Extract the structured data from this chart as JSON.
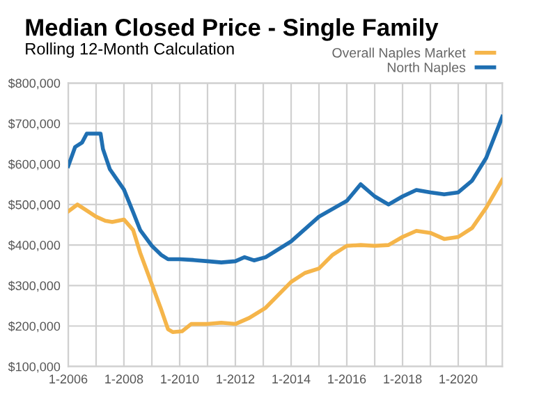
{
  "chart_data": {
    "type": "line",
    "title": "Median Closed Price - Single Family",
    "subtitle": "Rolling 12-Month Calculation",
    "series": [
      {
        "name": "Overall Naples Market",
        "color": "#f5b54a",
        "x": [
          "2006-01",
          "2006-05",
          "2006-08",
          "2007-01",
          "2007-05",
          "2007-08",
          "2008-01",
          "2008-05",
          "2008-08",
          "2009-01",
          "2009-05",
          "2009-08",
          "2009-10",
          "2010-02",
          "2010-06",
          "2011-01",
          "2011-07",
          "2012-01",
          "2012-07",
          "2013-02",
          "2014-01",
          "2014-07",
          "2015-01",
          "2015-07",
          "2016-01",
          "2016-07",
          "2017-01",
          "2017-07",
          "2018-01",
          "2018-07",
          "2019-01",
          "2019-07",
          "2020-01",
          "2020-07",
          "2021-01",
          "2021-08"
        ],
        "values": [
          483000,
          500000,
          489000,
          470000,
          460000,
          457000,
          463000,
          437000,
          381000,
          303000,
          242000,
          192000,
          185000,
          187000,
          205000,
          205000,
          208000,
          205000,
          220000,
          245000,
          309000,
          331000,
          342000,
          376000,
          398000,
          400000,
          398000,
          400000,
          420000,
          435000,
          430000,
          415000,
          420000,
          442000,
          492000,
          561000
        ]
      },
      {
        "name": "North Naples",
        "color": "#1f6fb2",
        "x": [
          "2006-01",
          "2006-04",
          "2006-07",
          "2006-09",
          "2007-03",
          "2007-04",
          "2007-07",
          "2008-01",
          "2008-05",
          "2008-08",
          "2009-01",
          "2009-05",
          "2009-08",
          "2010-01",
          "2010-07",
          "2011-01",
          "2011-07",
          "2012-01",
          "2012-05",
          "2012-09",
          "2013-02",
          "2014-01",
          "2015-01",
          "2016-01",
          "2016-07",
          "2017-01",
          "2017-07",
          "2018-01",
          "2018-07",
          "2019-01",
          "2019-07",
          "2020-01",
          "2020-07",
          "2021-01",
          "2021-08"
        ],
        "values": [
          595000,
          642000,
          653000,
          675000,
          675000,
          637000,
          587000,
          537000,
          481000,
          437000,
          398000,
          376000,
          365000,
          365000,
          363000,
          360000,
          357000,
          360000,
          370000,
          362000,
          370000,
          409000,
          470000,
          509000,
          550000,
          520000,
          500000,
          520000,
          536000,
          530000,
          525000,
          530000,
          559000,
          615000,
          717000
        ]
      }
    ],
    "xlim": [
      "2006-01",
      "2021-08"
    ],
    "xticks": [
      {
        "value": "2006-01",
        "label": "1-2006"
      },
      {
        "value": "2007-01",
        "label": null
      },
      {
        "value": "2008-01",
        "label": "1-2008"
      },
      {
        "value": "2009-01",
        "label": null
      },
      {
        "value": "2010-01",
        "label": "1-2010"
      },
      {
        "value": "2011-01",
        "label": null
      },
      {
        "value": "2012-01",
        "label": "1-2012"
      },
      {
        "value": "2013-01",
        "label": null
      },
      {
        "value": "2014-01",
        "label": "1-2014"
      },
      {
        "value": "2015-01",
        "label": null
      },
      {
        "value": "2016-01",
        "label": "1-2016"
      },
      {
        "value": "2017-01",
        "label": null
      },
      {
        "value": "2018-01",
        "label": "1-2018"
      },
      {
        "value": "2019-01",
        "label": null
      },
      {
        "value": "2020-01",
        "label": "1-2020"
      },
      {
        "value": "2021-01",
        "label": null
      }
    ],
    "ylim": [
      100000,
      800000
    ],
    "yticks": [
      {
        "value": 100000,
        "label": "$100,000"
      },
      {
        "value": 200000,
        "label": "$200,000"
      },
      {
        "value": 300000,
        "label": "$300,000"
      },
      {
        "value": 400000,
        "label": "$400,000"
      },
      {
        "value": 500000,
        "label": "$500,000"
      },
      {
        "value": 600000,
        "label": "$600,000"
      },
      {
        "value": 700000,
        "label": "$700,000"
      },
      {
        "value": 800000,
        "label": "$800,000"
      }
    ],
    "grid": true,
    "legend": "top right",
    "marker": "none",
    "line_style": "solid"
  }
}
